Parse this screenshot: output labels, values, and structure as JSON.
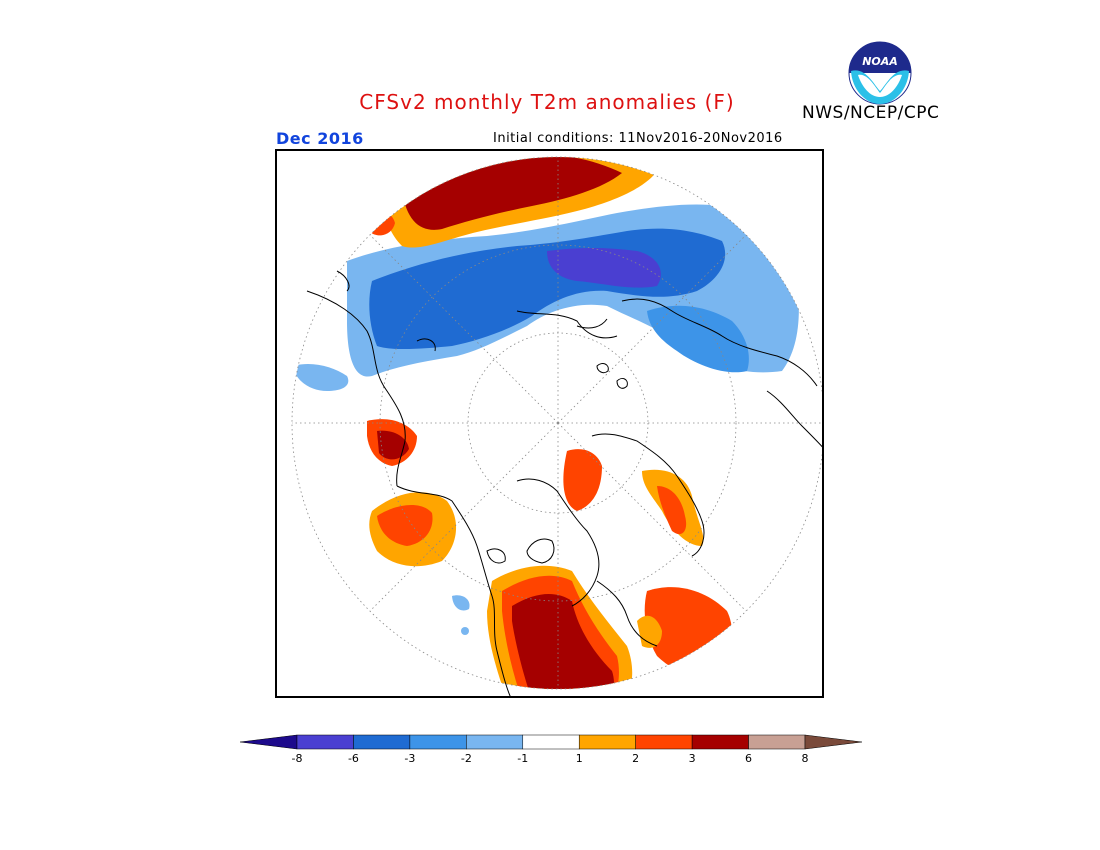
{
  "header": {
    "title": "CFSv2 monthly T2m anomalies (F)",
    "agency": "NWS/NCEP/CPC",
    "logo_text": "NOAA",
    "valid_month": "Dec 2016",
    "initial_conditions": "Initial conditions: 11Nov2016-20Nov2016"
  },
  "colors": {
    "title": "#dd1111",
    "date": "#1144dd"
  },
  "legend": {
    "ticks": [
      "-8",
      "-6",
      "-3",
      "-2",
      "-1",
      "1",
      "2",
      "3",
      "6",
      "8"
    ],
    "bins": [
      {
        "color": "#1d0a8c"
      },
      {
        "color": "#4a3fd1"
      },
      {
        "color": "#1f6bd2"
      },
      {
        "color": "#3d94e8"
      },
      {
        "color": "#79b6f0"
      },
      {
        "color": "#ffffff"
      },
      {
        "color": "#ffa500"
      },
      {
        "color": "#ff4400"
      },
      {
        "color": "#a50000"
      },
      {
        "color": "#c8a094"
      },
      {
        "color": "#7a4a3a"
      }
    ]
  }
}
